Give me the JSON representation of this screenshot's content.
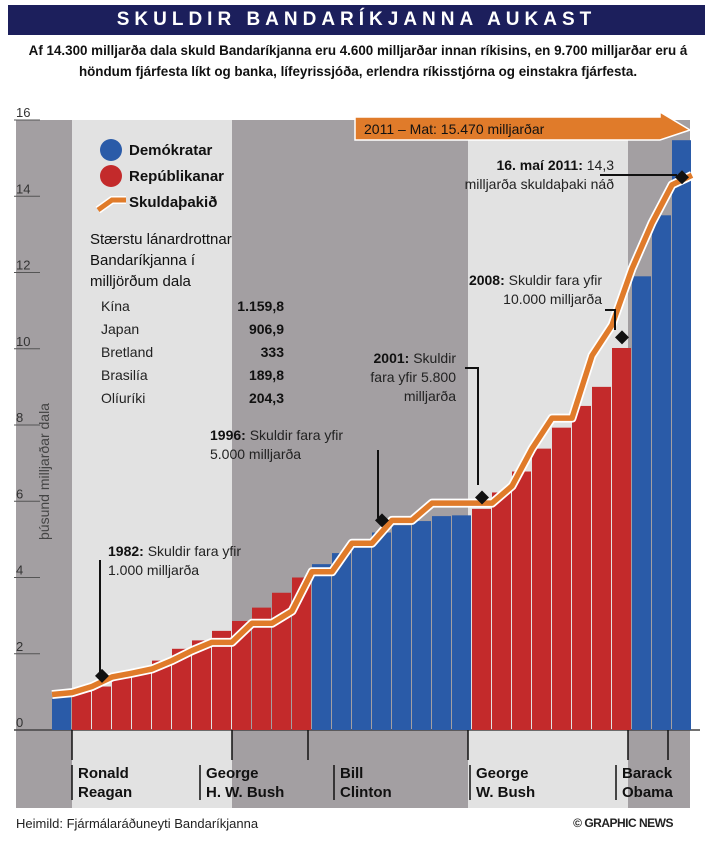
{
  "title": "SKULDIR BANDARÍKJANNA AUKAST",
  "subtitle": "Af 14.300 milljarða dala skuld Bandaríkjanna eru 4.600 milljarðar innan ríkisins, en 9.700 milljarðar eru á höndum fjárfesta líkt og banka, lífeyrissjóða, erlendra ríkisstjórna og einstakra fjárfesta.",
  "source": "Heimild: Fjármálaráðuneyti Bandaríkjanna",
  "credit": "© GRAPHIC NEWS",
  "colors": {
    "democrat": "#2a5ba8",
    "republican": "#c32a2b",
    "ceiling": "#e07b2a",
    "band": "#a39fa2",
    "lightband": "#e2e2e2",
    "navy": "#1c1f5c"
  },
  "legend": {
    "democrats": "Demókratar",
    "republicans": "Repúblikanar",
    "ceiling": "Skuldaþakið"
  },
  "creditors": {
    "title_lines": [
      "Stærstu lánardrottnar",
      "Bandaríkjanna í",
      "milljörðum dala"
    ],
    "rows": [
      {
        "country": "Kína",
        "value": "1.159,8"
      },
      {
        "country": "Japan",
        "value": "906,9"
      },
      {
        "country": "Bretland",
        "value": "333"
      },
      {
        "country": "Brasilía",
        "value": "189,8"
      },
      {
        "country": "Olíuríki",
        "value": "204,3"
      }
    ]
  },
  "annotations": {
    "a1982": {
      "bold": "1982:",
      "rest": " Skuldir fara yfir",
      "line2": "1.000 milljarða"
    },
    "a1996": {
      "bold": "1996:",
      "rest": " Skuldir fara yfir",
      "line2": "5.000 milljarða"
    },
    "a2001": {
      "bold": "2001:",
      "rest": " Skuldir",
      "line2": "fara yfir 5.800",
      "line3": "milljarða"
    },
    "a2008": {
      "bold": "2008:",
      "rest": " Skuldir fara yfir",
      "line2": "10.000 milljarða"
    },
    "a2011": {
      "bold": "16. maí 2011:",
      "rest": " 14,3",
      "line2": "milljarða skuldaþaki náð"
    },
    "estimate": "2011 – Mat: 15.470 milljarðar"
  },
  "presidents": [
    {
      "line1": "Ronald",
      "line2": "Reagan"
    },
    {
      "line1": "George",
      "line2": "H. W. Bush"
    },
    {
      "line1": "Bill",
      "line2": "Clinton"
    },
    {
      "line1": "George",
      "line2": "W. Bush"
    },
    {
      "line1": "Barack",
      "line2": "Obama"
    }
  ],
  "chart_data": {
    "type": "bar",
    "ylabel": "þúsund milljarðar dala",
    "ylim": [
      0,
      16
    ],
    "yticks": [
      0,
      2,
      4,
      6,
      8,
      10,
      12,
      14,
      16
    ],
    "grid": false,
    "values": [
      0.91,
      1.0,
      1.14,
      1.37,
      1.56,
      1.82,
      2.13,
      2.35,
      2.6,
      2.86,
      3.21,
      3.6,
      4.0,
      4.35,
      4.64,
      4.92,
      5.18,
      5.37,
      5.48,
      5.61,
      5.63,
      5.8,
      6.23,
      6.78,
      7.38,
      7.93,
      8.5,
      9.0,
      10.02,
      11.9,
      13.5,
      15.47
    ],
    "party": [
      "D",
      "R",
      "R",
      "R",
      "R",
      "R",
      "R",
      "R",
      "R",
      "R",
      "R",
      "R",
      "R",
      "D",
      "D",
      "D",
      "D",
      "D",
      "D",
      "D",
      "D",
      "R",
      "R",
      "R",
      "R",
      "R",
      "R",
      "R",
      "R",
      "D",
      "D",
      "D"
    ],
    "ceiling": [
      0.93,
      0.98,
      1.14,
      1.39,
      1.49,
      1.6,
      1.82,
      2.08,
      2.3,
      2.3,
      2.8,
      2.8,
      3.12,
      4.15,
      4.15,
      4.9,
      4.9,
      5.5,
      5.5,
      5.95,
      5.95,
      5.95,
      5.95,
      6.4,
      7.38,
      8.18,
      8.18,
      9.82,
      10.62,
      12.1,
      13.3,
      14.3,
      14.55
    ]
  }
}
